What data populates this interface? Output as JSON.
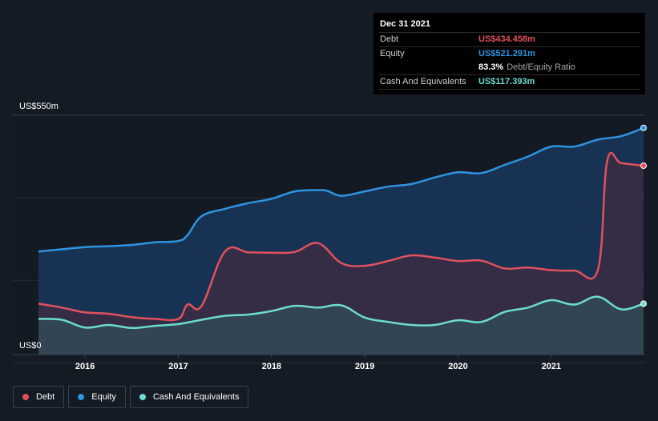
{
  "tooltip": {
    "date": "Dec 31 2021",
    "debt_label": "Debt",
    "debt_value": "US$434.458m",
    "equity_label": "Equity",
    "equity_value": "US$521.291m",
    "ratio_value": "83.3%",
    "ratio_label": "Debt/Equity Ratio",
    "cash_label": "Cash And Equivalents",
    "cash_value": "US$117.393m"
  },
  "colors": {
    "debt": "#e0515d",
    "equity": "#2e93e0",
    "cash": "#6cdcd0",
    "background": "#151b24",
    "tooltip_bg": "#000000"
  },
  "legend": [
    {
      "label": "Debt",
      "color": "#e0515d"
    },
    {
      "label": "Equity",
      "color": "#2e93e0"
    },
    {
      "label": "Cash And Equivalents",
      "color": "#6cdcd0"
    }
  ],
  "chart_data": {
    "type": "area",
    "y_top_label": "US$550m",
    "y_bottom_label": "US$0",
    "ylim": [
      0,
      550
    ],
    "xlim": [
      2015.5,
      2021.99
    ],
    "x_ticks": [
      "2016",
      "2017",
      "2018",
      "2019",
      "2020",
      "2021"
    ],
    "x_tick_values": [
      2016,
      2017,
      2018,
      2019,
      2020,
      2021
    ],
    "grid": true,
    "legend_position": "bottom-left",
    "series": [
      {
        "name": "Equity",
        "x": [
          2015.5,
          2015.75,
          2016.0,
          2016.25,
          2016.5,
          2016.75,
          2017.0,
          2017.1,
          2017.25,
          2017.5,
          2017.75,
          2018.0,
          2018.25,
          2018.5,
          2018.6,
          2018.75,
          2019.0,
          2019.25,
          2019.5,
          2019.75,
          2020.0,
          2020.25,
          2020.5,
          2020.75,
          2021.0,
          2021.25,
          2021.5,
          2021.75,
          2021.99
        ],
        "values": [
          237,
          242,
          247,
          249,
          252,
          258,
          261,
          275,
          318,
          335,
          348,
          358,
          375,
          378,
          376,
          365,
          375,
          386,
          392,
          407,
          419,
          417,
          436,
          455,
          478,
          478,
          494,
          502,
          521
        ]
      },
      {
        "name": "Debt",
        "x": [
          2015.5,
          2015.75,
          2016.0,
          2016.25,
          2016.5,
          2016.75,
          2017.0,
          2017.1,
          2017.25,
          2017.5,
          2017.75,
          2018.0,
          2018.25,
          2018.5,
          2018.75,
          2019.0,
          2019.25,
          2019.5,
          2019.75,
          2020.0,
          2020.25,
          2020.5,
          2020.75,
          2021.0,
          2021.25,
          2021.5,
          2021.6,
          2021.75,
          2021.99
        ],
        "values": [
          117,
          108,
          97,
          94,
          86,
          82,
          82,
          115,
          112,
          237,
          235,
          234,
          236,
          256,
          210,
          204,
          215,
          228,
          223,
          215,
          216,
          198,
          200,
          194,
          193,
          195,
          445,
          440,
          434
        ]
      },
      {
        "name": "Cash And Equivalents",
        "x": [
          2015.5,
          2015.75,
          2016.0,
          2016.25,
          2016.5,
          2016.75,
          2017.0,
          2017.25,
          2017.5,
          2017.75,
          2018.0,
          2018.25,
          2018.5,
          2018.75,
          2019.0,
          2019.25,
          2019.5,
          2019.75,
          2020.0,
          2020.25,
          2020.5,
          2020.75,
          2021.0,
          2021.25,
          2021.5,
          2021.75,
          2021.99
        ],
        "values": [
          82,
          80,
          62,
          68,
          61,
          66,
          70,
          80,
          89,
          92,
          100,
          112,
          108,
          113,
          85,
          75,
          68,
          68,
          79,
          75,
          98,
          108,
          125,
          115,
          133,
          104,
          117
        ]
      }
    ]
  }
}
